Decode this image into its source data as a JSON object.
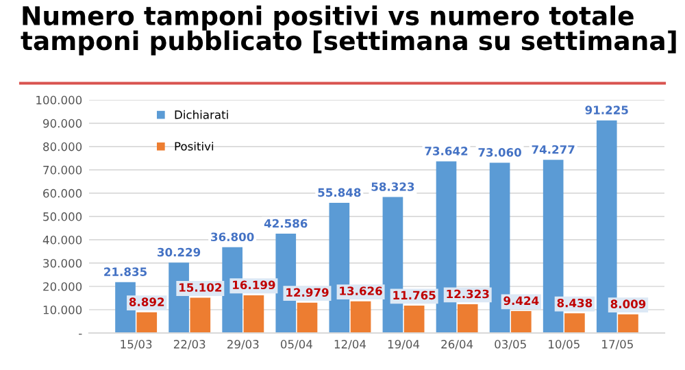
{
  "chart_data": {
    "type": "bar",
    "title": "Numero tamponi positivi vs numero totale tamponi pubblicato [settimana su settimana]",
    "categories": [
      "15/03",
      "22/03",
      "29/03",
      "05/04",
      "12/04",
      "19/04",
      "26/04",
      "03/05",
      "10/05",
      "17/05"
    ],
    "series": [
      {
        "name": "Dichiarati",
        "color": "#5b9bd5",
        "values": [
          21835,
          30229,
          36800,
          42586,
          55848,
          58323,
          73642,
          73060,
          74277,
          91225
        ],
        "value_labels": [
          "21.835",
          "30.229",
          "36.800",
          "42.586",
          "55.848",
          "58.323",
          "73.642",
          "73.060",
          "74.277",
          "91.225"
        ]
      },
      {
        "name": "Positivi",
        "color": "#ed7d31",
        "values": [
          8892,
          15102,
          16199,
          12979,
          13626,
          11765,
          12323,
          9424,
          8438,
          8009
        ],
        "value_labels": [
          "8.892",
          "15.102",
          "16.199",
          "12.979",
          "13.626",
          "11.765",
          "12.323",
          "9.424",
          "8.438",
          "8.009"
        ]
      }
    ],
    "ylim": [
      0,
      100000
    ],
    "yticks": [
      {
        "value": 0,
        "label": "-"
      },
      {
        "value": 10000,
        "label": "10.000"
      },
      {
        "value": 20000,
        "label": "20.000"
      },
      {
        "value": 30000,
        "label": "30.000"
      },
      {
        "value": 40000,
        "label": "40.000"
      },
      {
        "value": 50000,
        "label": "50.000"
      },
      {
        "value": 60000,
        "label": "60.000"
      },
      {
        "value": 70000,
        "label": "70.000"
      },
      {
        "value": 80000,
        "label": "80.000"
      },
      {
        "value": 90000,
        "label": "90.000"
      },
      {
        "value": 100000,
        "label": "100.000"
      }
    ],
    "grid": "y",
    "legend": "top left"
  }
}
